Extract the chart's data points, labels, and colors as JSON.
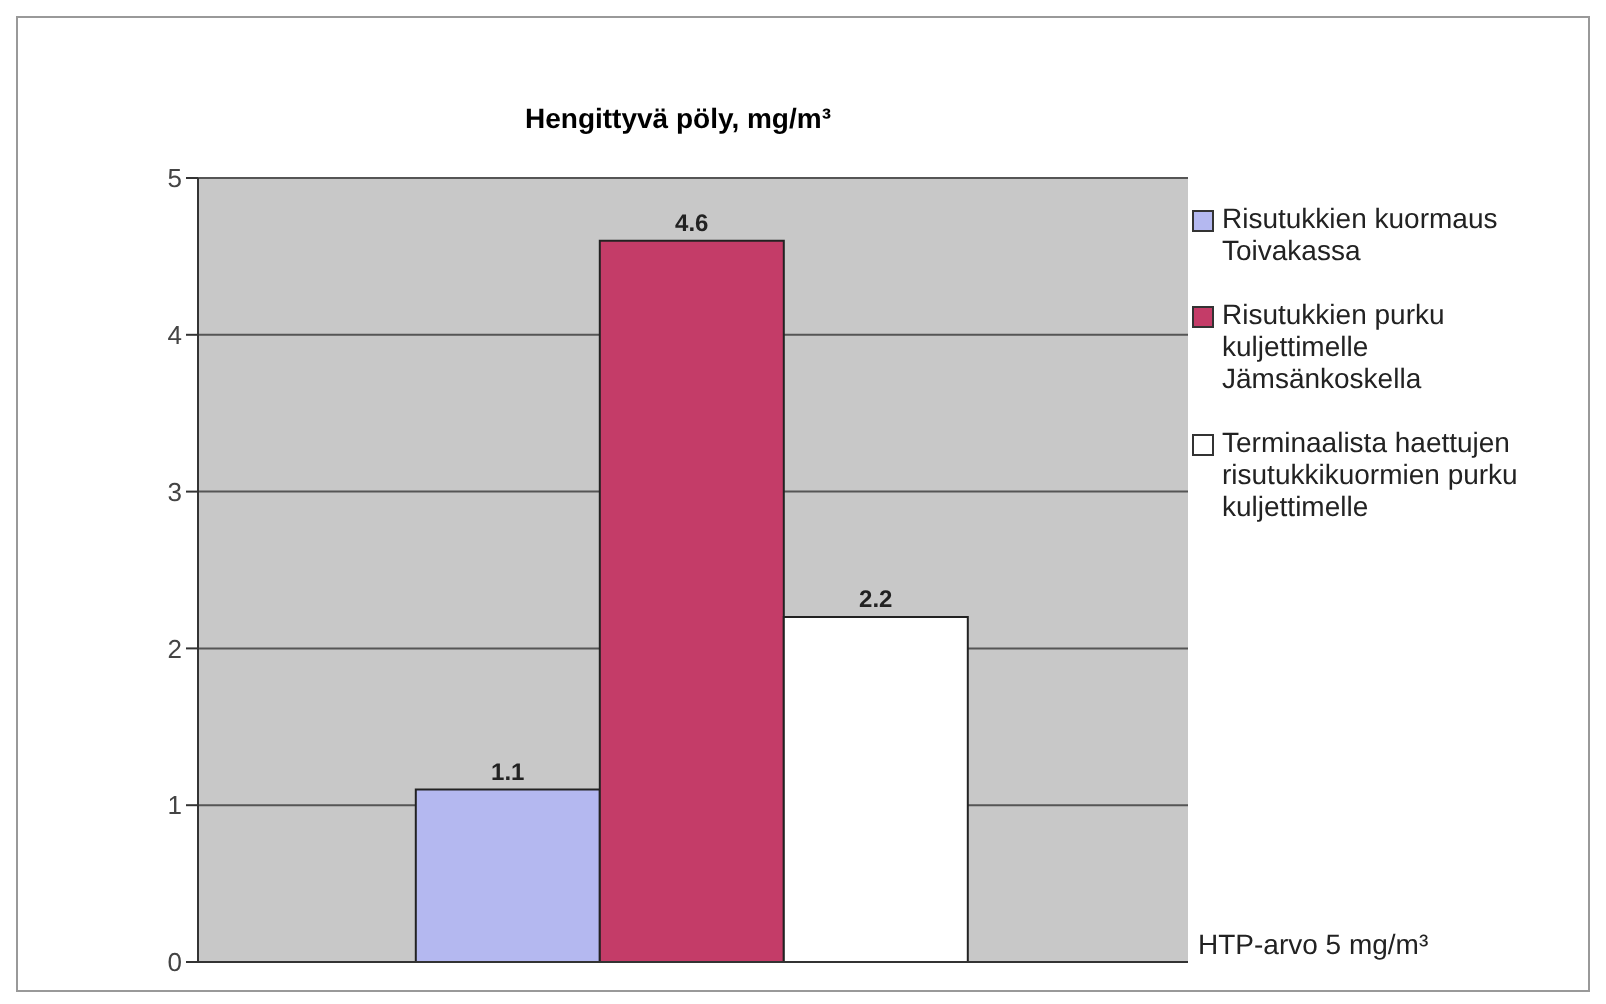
{
  "chart_data": {
    "type": "bar",
    "title": "Hengittyvä pöly, mg/m³",
    "categories": [
      null
    ],
    "series": [
      {
        "name": "Risutukkien kuormaus Toivakassa",
        "color": "#b4b8f0",
        "values": [
          1.1
        ]
      },
      {
        "name": "Risutukkien purku kuljettimelle Jämsänkoskella",
        "color": "#c43c68",
        "values": [
          4.6
        ]
      },
      {
        "name": "Terminaalista haettujen risutukkikuormien purku kuljettimelle",
        "color": "#ffffff",
        "values": [
          2.2
        ]
      }
    ],
    "ylim": [
      0,
      5
    ],
    "yticks": [
      0,
      1,
      2,
      3,
      4,
      5
    ],
    "grid": "y",
    "legend": "right",
    "data_labels": true,
    "annotations": [
      "HTP-arvo 5 mg/m³"
    ]
  }
}
